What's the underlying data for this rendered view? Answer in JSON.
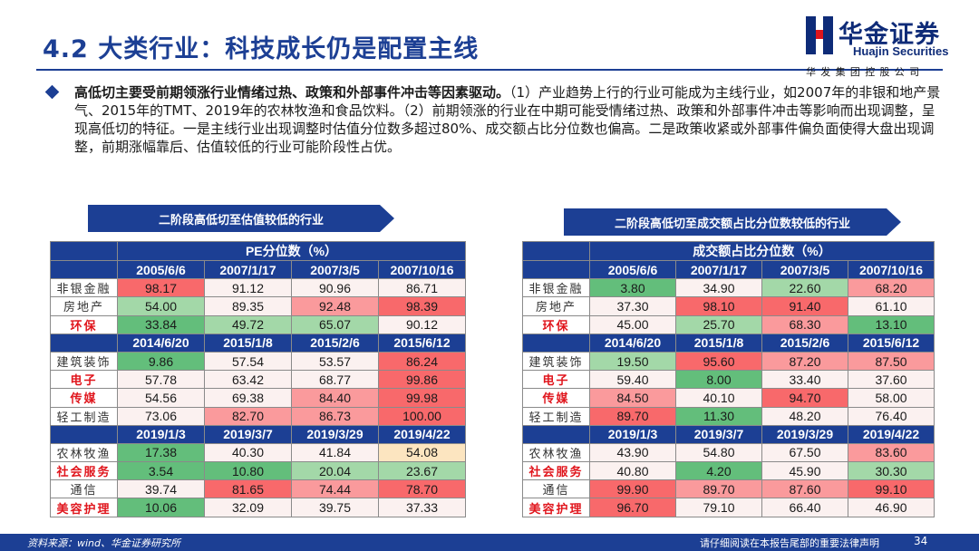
{
  "header": {
    "title": "4.2 大类行业：科技成长仍是配置主线",
    "logo_cn": "华金证券",
    "logo_en": "Huajin Securities",
    "group": "华发集团控股公司"
  },
  "bullet": {
    "lead": "高低切主要受前期领涨行业情绪过热、政策和外部事件冲击等因素驱动。",
    "body": "（1）产业趋势上行的行业可能成为主线行业，如2007年的非银和地产景气、2015年的TMT、2019年的农林牧渔和食品饮料。（2）前期领涨的行业在中期可能受情绪过热、政策和外部事件冲击等影响而出现调整，呈现高低切的特征。一是主线行业出现调整时估值分位数多超过80%、成交额占比分位数也偏高。二是政策收紧或外部事件偏负面使得大盘出现调整，前期涨幅靠后、估值较低的行业可能阶段性占优。"
  },
  "left_banner": "二阶段高低切至估值较低的行业",
  "right_banner": "二阶段高低切至成交额占比分位数较低的行业",
  "pe_table": {
    "title": "PE分位数（%）",
    "groups": [
      {
        "dates": [
          "2005/6/6",
          "2007/1/17",
          "2007/3/5",
          "2007/10/16"
        ],
        "rows": [
          {
            "label": "非银金融",
            "values": [
              "98.17",
              "91.12",
              "90.96",
              "86.71"
            ]
          },
          {
            "label": "房地产",
            "values": [
              "54.00",
              "89.35",
              "92.48",
              "98.39"
            ]
          },
          {
            "label": "环保",
            "values": [
              "33.84",
              "49.72",
              "65.07",
              "90.12"
            ]
          }
        ]
      },
      {
        "dates": [
          "2014/6/20",
          "2015/1/8",
          "2015/2/6",
          "2015/6/12"
        ],
        "rows": [
          {
            "label": "建筑装饰",
            "values": [
              "9.86",
              "57.54",
              "53.57",
              "86.24"
            ]
          },
          {
            "label": "电子",
            "values": [
              "57.78",
              "63.42",
              "68.77",
              "99.86"
            ]
          },
          {
            "label": "传媒",
            "values": [
              "54.56",
              "69.38",
              "84.40",
              "99.98"
            ]
          },
          {
            "label": "轻工制造",
            "values": [
              "73.06",
              "82.70",
              "86.73",
              "100.00"
            ]
          }
        ]
      },
      {
        "dates": [
          "2019/1/3",
          "2019/3/7",
          "2019/3/29",
          "2019/4/22"
        ],
        "rows": [
          {
            "label": "农林牧渔",
            "values": [
              "17.38",
              "40.30",
              "41.84",
              "54.08"
            ]
          },
          {
            "label": "社会服务",
            "values": [
              "3.54",
              "10.80",
              "20.04",
              "23.67"
            ]
          },
          {
            "label": "通信",
            "values": [
              "39.74",
              "81.65",
              "74.44",
              "78.70"
            ]
          },
          {
            "label": "美容护理",
            "values": [
              "10.06",
              "32.09",
              "39.75",
              "37.33"
            ]
          }
        ]
      }
    ]
  },
  "vol_table": {
    "title": "成交额占比分位数（%）",
    "groups": [
      {
        "dates": [
          "2005/6/6",
          "2007/1/17",
          "2007/3/5",
          "2007/10/16"
        ],
        "rows": [
          {
            "label": "非银金融",
            "values": [
              "3.80",
              "34.90",
              "22.60",
              "68.20"
            ]
          },
          {
            "label": "房地产",
            "values": [
              "37.30",
              "98.10",
              "91.40",
              "61.10"
            ]
          },
          {
            "label": "环保",
            "values": [
              "45.00",
              "25.70",
              "68.30",
              "13.10"
            ]
          }
        ]
      },
      {
        "dates": [
          "2014/6/20",
          "2015/1/8",
          "2015/2/6",
          "2015/6/12"
        ],
        "rows": [
          {
            "label": "建筑装饰",
            "values": [
              "19.50",
              "95.60",
              "87.20",
              "87.50"
            ]
          },
          {
            "label": "电子",
            "values": [
              "59.40",
              "8.00",
              "33.40",
              "37.60"
            ]
          },
          {
            "label": "传媒",
            "values": [
              "84.50",
              "40.10",
              "94.70",
              "58.00"
            ]
          },
          {
            "label": "轻工制造",
            "values": [
              "89.70",
              "11.30",
              "48.20",
              "76.40"
            ]
          }
        ]
      },
      {
        "dates": [
          "2019/1/3",
          "2019/3/7",
          "2019/3/29",
          "2019/4/22"
        ],
        "rows": [
          {
            "label": "农林牧渔",
            "values": [
              "43.90",
              "54.80",
              "67.50",
              "83.60"
            ]
          },
          {
            "label": "社会服务",
            "values": [
              "40.80",
              "4.20",
              "45.90",
              "30.30"
            ]
          },
          {
            "label": "通信",
            "values": [
              "99.90",
              "89.70",
              "87.60",
              "99.10"
            ]
          },
          {
            "label": "美容护理",
            "values": [
              "96.70",
              "79.10",
              "66.40",
              "46.90"
            ]
          }
        ]
      }
    ]
  },
  "footer": {
    "source": "资料来源：wind、华金证券研究所",
    "note": "请仔细阅读在本报告尾部的重要法律声明",
    "page": "34"
  }
}
